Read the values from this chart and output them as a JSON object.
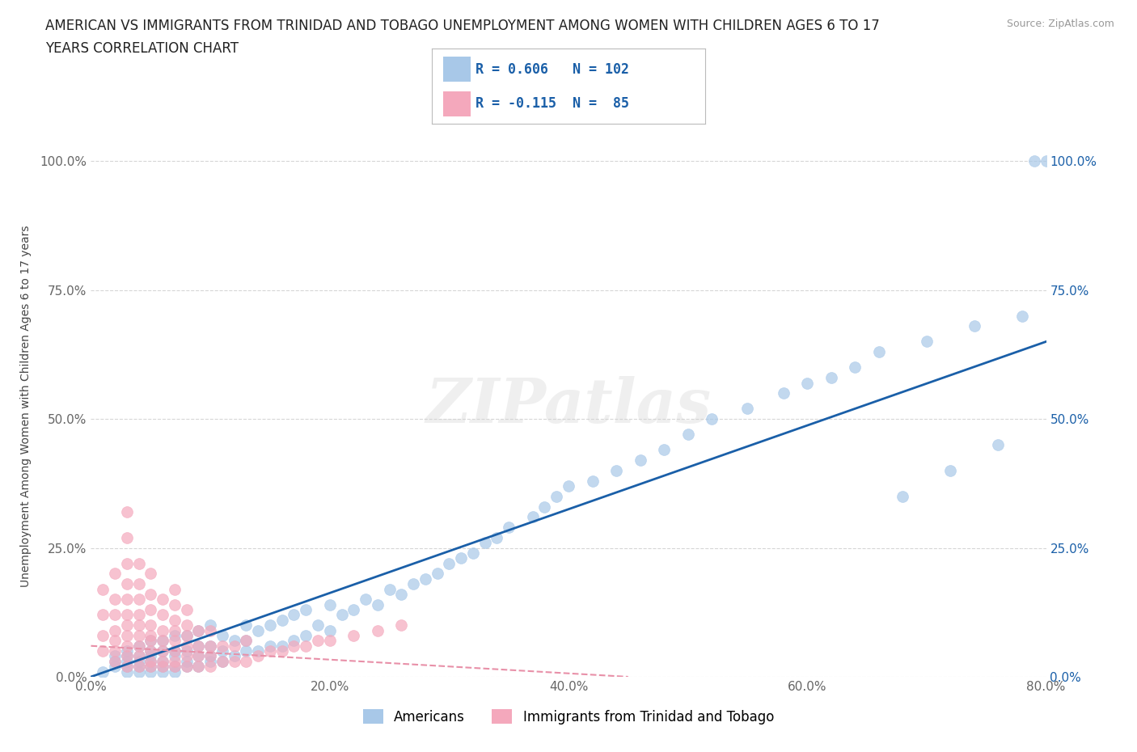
{
  "title_line1": "AMERICAN VS IMMIGRANTS FROM TRINIDAD AND TOBAGO UNEMPLOYMENT AMONG WOMEN WITH CHILDREN AGES 6 TO 17",
  "title_line2": "YEARS CORRELATION CHART",
  "source": "Source: ZipAtlas.com",
  "ylabel": "Unemployment Among Women with Children Ages 6 to 17 years",
  "xlim": [
    0,
    0.8
  ],
  "ylim": [
    0,
    1.05
  ],
  "xticks": [
    0.0,
    0.2,
    0.4,
    0.6,
    0.8
  ],
  "yticks": [
    0.0,
    0.25,
    0.5,
    0.75,
    1.0
  ],
  "xticklabels": [
    "0.0%",
    "20.0%",
    "40.0%",
    "60.0%",
    "80.0%"
  ],
  "yticklabels": [
    "0.0%",
    "25.0%",
    "50.0%",
    "75.0%",
    "100.0%"
  ],
  "bg_color": "#ffffff",
  "grid_color": "#cccccc",
  "blue_color": "#a8c8e8",
  "pink_color": "#f4a8bc",
  "blue_line_color": "#1a5fa8",
  "pink_line_color": "#e890a8",
  "legend_label1": "Americans",
  "legend_label2": "Immigrants from Trinidad and Tobago",
  "watermark": "ZIPatlas",
  "blue_trendline_x0": 0.0,
  "blue_trendline_y0": 0.0,
  "blue_trendline_x1": 0.8,
  "blue_trendline_y1": 0.65,
  "pink_trendline_x0": 0.0,
  "pink_trendline_y0": 0.06,
  "pink_trendline_x1": 0.45,
  "pink_trendline_y1": 0.0,
  "americans_x": [
    0.01,
    0.02,
    0.02,
    0.02,
    0.03,
    0.03,
    0.03,
    0.03,
    0.03,
    0.04,
    0.04,
    0.04,
    0.04,
    0.04,
    0.05,
    0.05,
    0.05,
    0.05,
    0.05,
    0.05,
    0.06,
    0.06,
    0.06,
    0.06,
    0.06,
    0.07,
    0.07,
    0.07,
    0.07,
    0.07,
    0.08,
    0.08,
    0.08,
    0.08,
    0.09,
    0.09,
    0.09,
    0.09,
    0.1,
    0.1,
    0.1,
    0.1,
    0.11,
    0.11,
    0.11,
    0.12,
    0.12,
    0.13,
    0.13,
    0.13,
    0.14,
    0.14,
    0.15,
    0.15,
    0.16,
    0.16,
    0.17,
    0.17,
    0.18,
    0.18,
    0.19,
    0.2,
    0.2,
    0.21,
    0.22,
    0.23,
    0.24,
    0.25,
    0.26,
    0.27,
    0.28,
    0.29,
    0.3,
    0.31,
    0.32,
    0.33,
    0.34,
    0.35,
    0.37,
    0.38,
    0.39,
    0.4,
    0.42,
    0.44,
    0.46,
    0.48,
    0.5,
    0.52,
    0.55,
    0.58,
    0.6,
    0.62,
    0.64,
    0.66,
    0.68,
    0.7,
    0.72,
    0.74,
    0.76,
    0.78,
    0.79,
    0.8
  ],
  "americans_y": [
    0.01,
    0.02,
    0.03,
    0.04,
    0.01,
    0.02,
    0.03,
    0.04,
    0.05,
    0.01,
    0.02,
    0.03,
    0.04,
    0.06,
    0.01,
    0.02,
    0.03,
    0.04,
    0.05,
    0.07,
    0.01,
    0.02,
    0.03,
    0.05,
    0.07,
    0.01,
    0.02,
    0.04,
    0.05,
    0.08,
    0.02,
    0.03,
    0.05,
    0.08,
    0.02,
    0.04,
    0.06,
    0.09,
    0.03,
    0.04,
    0.06,
    0.1,
    0.03,
    0.05,
    0.08,
    0.04,
    0.07,
    0.05,
    0.07,
    0.1,
    0.05,
    0.09,
    0.06,
    0.1,
    0.06,
    0.11,
    0.07,
    0.12,
    0.08,
    0.13,
    0.1,
    0.09,
    0.14,
    0.12,
    0.13,
    0.15,
    0.14,
    0.17,
    0.16,
    0.18,
    0.19,
    0.2,
    0.22,
    0.23,
    0.24,
    0.26,
    0.27,
    0.29,
    0.31,
    0.33,
    0.35,
    0.37,
    0.38,
    0.4,
    0.42,
    0.44,
    0.47,
    0.5,
    0.52,
    0.55,
    0.57,
    0.58,
    0.6,
    0.63,
    0.35,
    0.65,
    0.4,
    0.68,
    0.45,
    0.7,
    1.0,
    1.0
  ],
  "immigrants_x": [
    0.01,
    0.01,
    0.01,
    0.01,
    0.02,
    0.02,
    0.02,
    0.02,
    0.02,
    0.02,
    0.02,
    0.03,
    0.03,
    0.03,
    0.03,
    0.03,
    0.03,
    0.03,
    0.03,
    0.03,
    0.03,
    0.03,
    0.04,
    0.04,
    0.04,
    0.04,
    0.04,
    0.04,
    0.04,
    0.04,
    0.04,
    0.05,
    0.05,
    0.05,
    0.05,
    0.05,
    0.05,
    0.05,
    0.05,
    0.05,
    0.06,
    0.06,
    0.06,
    0.06,
    0.06,
    0.06,
    0.06,
    0.07,
    0.07,
    0.07,
    0.07,
    0.07,
    0.07,
    0.07,
    0.07,
    0.08,
    0.08,
    0.08,
    0.08,
    0.08,
    0.08,
    0.09,
    0.09,
    0.09,
    0.09,
    0.1,
    0.1,
    0.1,
    0.1,
    0.11,
    0.11,
    0.12,
    0.12,
    0.13,
    0.13,
    0.14,
    0.15,
    0.16,
    0.17,
    0.18,
    0.19,
    0.2,
    0.22,
    0.24,
    0.26
  ],
  "immigrants_y": [
    0.05,
    0.08,
    0.12,
    0.17,
    0.03,
    0.05,
    0.07,
    0.09,
    0.12,
    0.15,
    0.2,
    0.02,
    0.04,
    0.06,
    0.08,
    0.1,
    0.12,
    0.15,
    0.18,
    0.22,
    0.27,
    0.32,
    0.02,
    0.04,
    0.06,
    0.08,
    0.1,
    0.12,
    0.15,
    0.18,
    0.22,
    0.02,
    0.03,
    0.05,
    0.07,
    0.08,
    0.1,
    0.13,
    0.16,
    0.2,
    0.02,
    0.03,
    0.05,
    0.07,
    0.09,
    0.12,
    0.15,
    0.02,
    0.03,
    0.05,
    0.07,
    0.09,
    0.11,
    0.14,
    0.17,
    0.02,
    0.04,
    0.06,
    0.08,
    0.1,
    0.13,
    0.02,
    0.04,
    0.06,
    0.09,
    0.02,
    0.04,
    0.06,
    0.09,
    0.03,
    0.06,
    0.03,
    0.06,
    0.03,
    0.07,
    0.04,
    0.05,
    0.05,
    0.06,
    0.06,
    0.07,
    0.07,
    0.08,
    0.09,
    0.1
  ]
}
